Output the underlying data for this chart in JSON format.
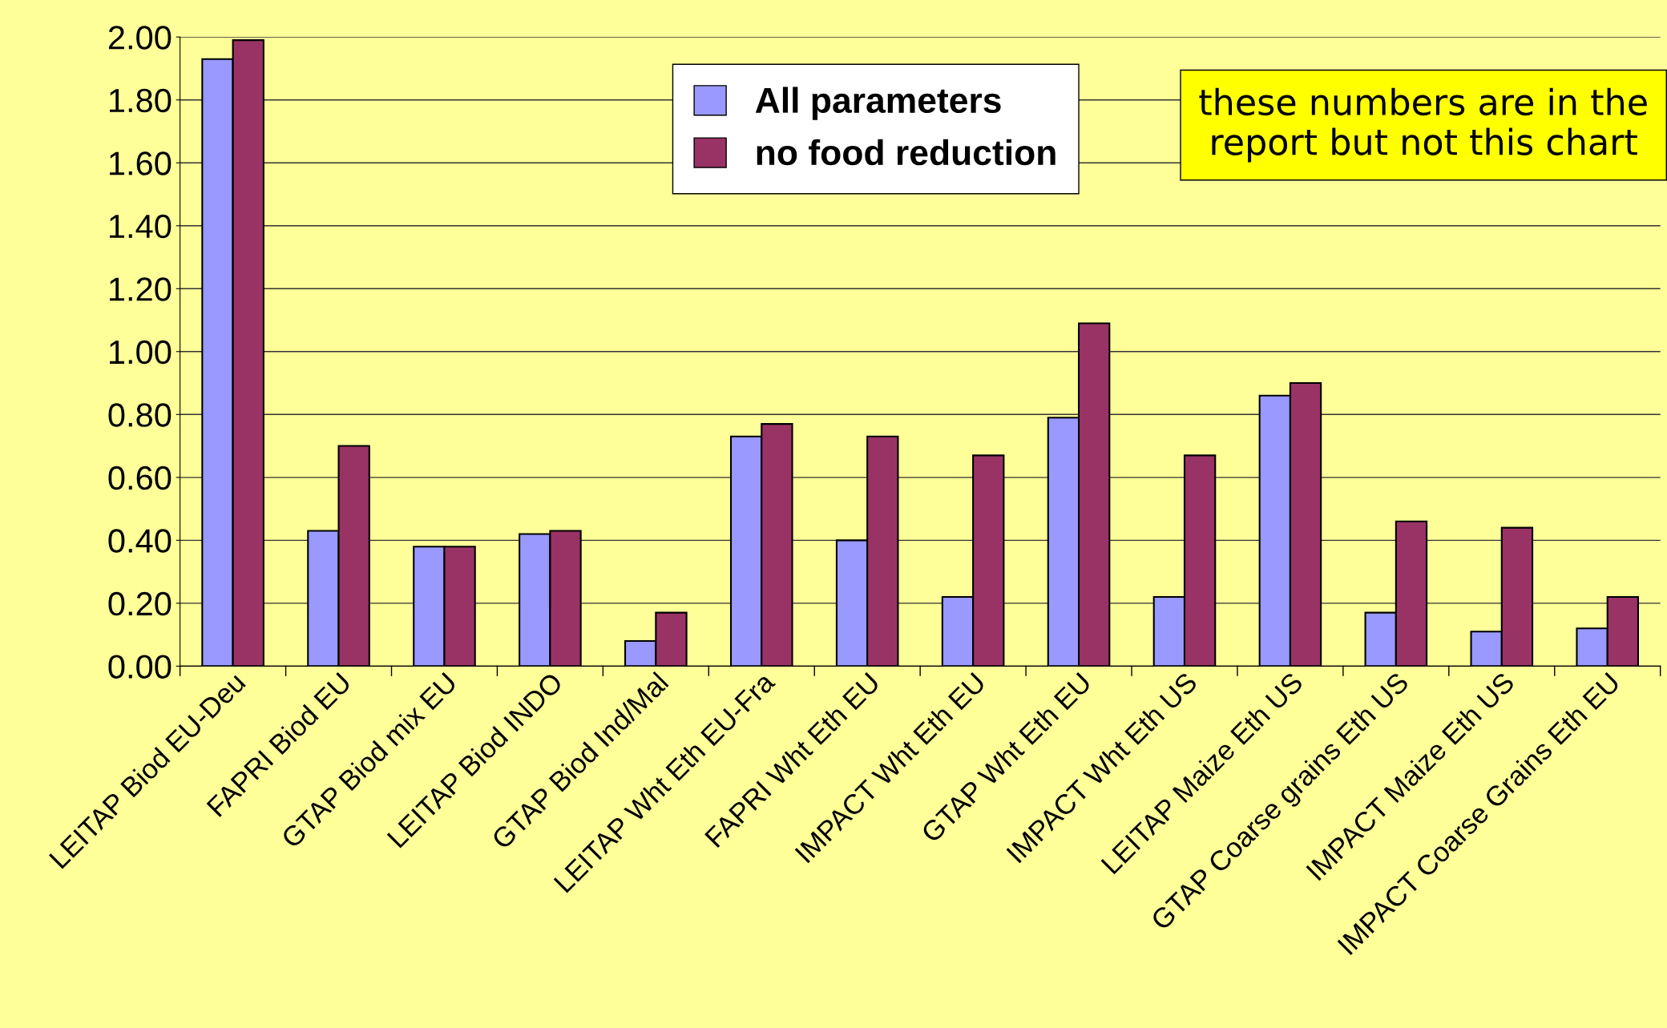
{
  "chart_data": {
    "type": "bar",
    "categories": [
      "LEITAP Biod EU-Deu",
      "FAPRI Biod EU",
      "GTAP Biod mix EU",
      "LEITAP Biod INDO",
      "GTAP Biod Ind/Mal",
      "LEITAP Wht Eth EU-Fra",
      "FAPRI Wht Eth EU",
      "IMPACT Wht Eth EU",
      "GTAP Wht Eth EU",
      "IMPACT Wht Eth US",
      "LEITAP Maize Eth US",
      "GTAP Coarse grains Eth US",
      "IMPACT Maize Eth US",
      "IMPACT Coarse Grains Eth EU"
    ],
    "series": [
      {
        "name": "All parameters",
        "color": "#9999ff",
        "values": [
          1.93,
          0.43,
          0.38,
          0.42,
          0.08,
          0.73,
          0.4,
          0.22,
          0.79,
          0.22,
          0.86,
          0.17,
          0.11,
          0.12
        ]
      },
      {
        "name": "no food reduction",
        "color": "#993366",
        "values": [
          1.99,
          0.7,
          0.38,
          0.43,
          0.17,
          0.77,
          0.73,
          0.67,
          1.09,
          0.67,
          0.9,
          0.46,
          0.44,
          0.22
        ]
      }
    ],
    "ylim": [
      0,
      2
    ],
    "yticks": [
      {
        "value": 0,
        "label": "0.00"
      },
      {
        "value": 0.2,
        "label": "0.20"
      },
      {
        "value": 0.4,
        "label": "0.40"
      },
      {
        "value": 0.6,
        "label": "0.60"
      },
      {
        "value": 0.8,
        "label": "0.80"
      },
      {
        "value": 1,
        "label": "1.00"
      },
      {
        "value": 1.2,
        "label": "1.20"
      },
      {
        "value": 1.4,
        "label": "1.40"
      },
      {
        "value": 1.6,
        "label": "1.60"
      },
      {
        "value": 1.8,
        "label": "1.80"
      },
      {
        "value": 2,
        "label": "2.00"
      }
    ],
    "grid": "y",
    "legend": "top",
    "annotations": [
      "these numbers are in the report but not this chart"
    ]
  }
}
